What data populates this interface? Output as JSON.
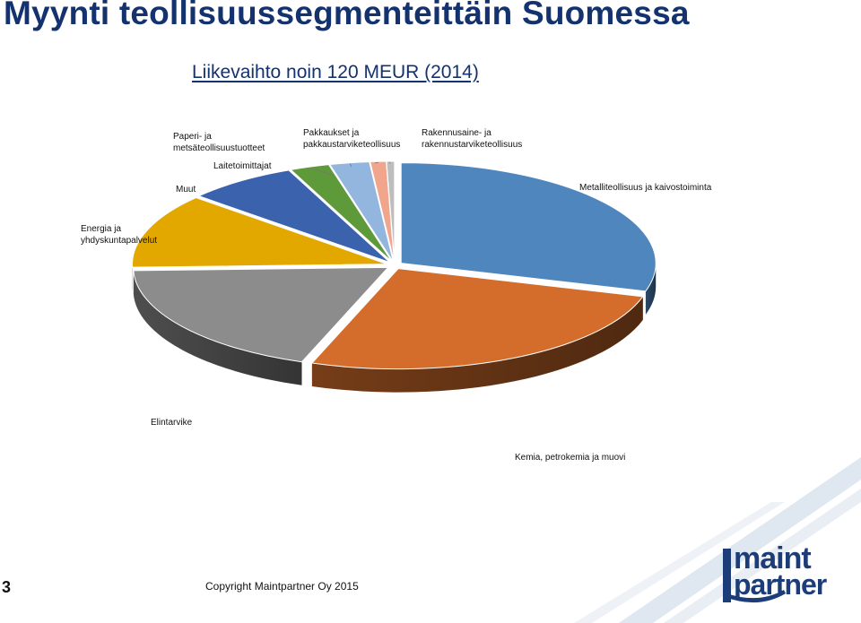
{
  "slide": {
    "title": "Myynti teollisuussegmenteittäin Suomessa",
    "subtitle": "Liikevaihto noin 120 MEUR (2014)",
    "page_number": "3",
    "copyright": "Copyright Maintpartner Oy 2015",
    "logo_text": "maint partner"
  },
  "chart_data": {
    "type": "pie",
    "style": "3d-exploded",
    "unit": "%",
    "slices": [
      {
        "label": "Metalliteollisuus ja kaivostoiminta",
        "value": 29.5,
        "color": "#4f86bd"
      },
      {
        "label": "Kemia, petrokemia ja muovi",
        "value": 26,
        "color": "#d46d2b"
      },
      {
        "label": "Elintarvike",
        "value": 19,
        "color": "#8c8c8c"
      },
      {
        "label": "Energia ja yhdyskuntapalvelut",
        "value": 12,
        "color": "#e2a800"
      },
      {
        "label": "Muut",
        "value": 7,
        "color": "#3a62ad"
      },
      {
        "label": "Laitetoimittajat",
        "value": 2.5,
        "color": "#5f9a3a"
      },
      {
        "label": "Paperi- ja metsäteollisuustuotteet",
        "value": 2.5,
        "color": "#93b6de"
      },
      {
        "label": "Pakkaukset ja pakkaustarviketeollisuus",
        "value": 1,
        "color": "#f0a58c"
      },
      {
        "label": "Rakennusaine- ja rakennustarviketeollisuus",
        "value": 0.5,
        "color": "#bdbdbd"
      }
    ]
  }
}
